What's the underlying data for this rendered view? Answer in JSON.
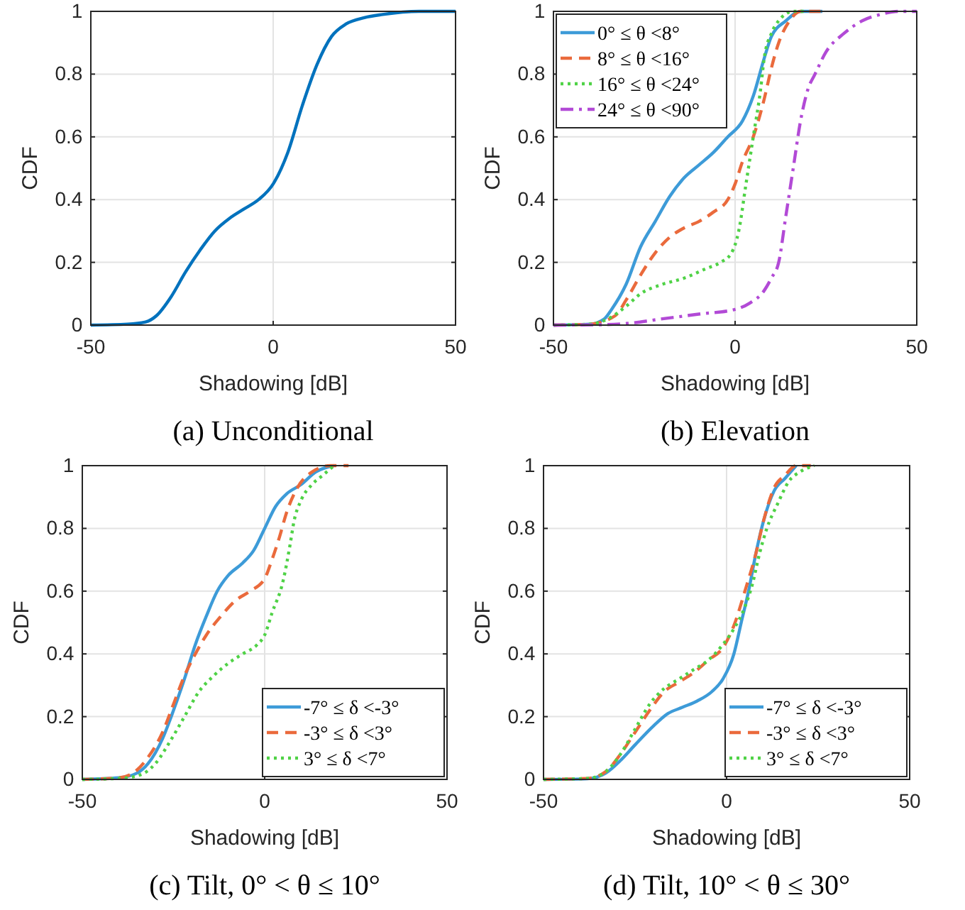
{
  "chart_data": [
    {
      "type": "line",
      "title": "(a) Unconditional",
      "xlabel": "Shadowing [dB]",
      "ylabel": "CDF",
      "xlim": [
        -50,
        50
      ],
      "xticks": [
        -50,
        0,
        50
      ],
      "ylim": [
        0,
        1
      ],
      "yticks": [
        0,
        0.2,
        0.4,
        0.6,
        0.8,
        1
      ],
      "grid": true,
      "legend": false,
      "series": [
        {
          "color": "#0072bd",
          "line_style": "solid",
          "x": [
            -50,
            -40,
            -35,
            -32,
            -28,
            -24,
            -20,
            -16,
            -12,
            -8,
            -4,
            0,
            4,
            8,
            12,
            16,
            20,
            25,
            30,
            40,
            50
          ],
          "values": [
            0,
            0.003,
            0.01,
            0.03,
            0.09,
            0.17,
            0.24,
            0.3,
            0.34,
            0.37,
            0.4,
            0.45,
            0.55,
            0.7,
            0.83,
            0.92,
            0.96,
            0.98,
            0.99,
            1,
            1
          ]
        }
      ]
    },
    {
      "type": "line",
      "title": "(b) Elevation",
      "xlabel": "Shadowing [dB]",
      "ylabel": "CDF",
      "xlim": [
        -50,
        50
      ],
      "xticks": [
        -50,
        0,
        50
      ],
      "ylim": [
        0,
        1
      ],
      "yticks": [
        0,
        0.2,
        0.4,
        0.6,
        0.8,
        1
      ],
      "grid": true,
      "legend": "top left",
      "series": [
        {
          "name": "0° ≤ θ <8°",
          "color": "#3d9bd8",
          "line_style": "solid",
          "x": [
            -50,
            -40,
            -36,
            -34,
            -30,
            -26,
            -22,
            -18,
            -14,
            -10,
            -6,
            -2,
            2,
            5,
            8,
            10,
            14,
            18,
            24
          ],
          "values": [
            0,
            0.003,
            0.02,
            0.05,
            0.13,
            0.25,
            0.33,
            0.41,
            0.47,
            0.51,
            0.55,
            0.6,
            0.65,
            0.73,
            0.85,
            0.92,
            0.97,
            1,
            1
          ]
        },
        {
          "name": "8° ≤ θ <16°",
          "color": "#ea6a3c",
          "line_style": "dashed",
          "x": [
            -50,
            -40,
            -33,
            -30,
            -26,
            -22,
            -18,
            -14,
            -10,
            -6,
            -2,
            0,
            2,
            5,
            8,
            10,
            12,
            15,
            18,
            24
          ],
          "values": [
            0,
            0.003,
            0.03,
            0.08,
            0.16,
            0.23,
            0.28,
            0.31,
            0.33,
            0.36,
            0.4,
            0.45,
            0.52,
            0.6,
            0.72,
            0.82,
            0.9,
            0.97,
            1,
            1
          ]
        },
        {
          "name": "16° ≤ θ <24°",
          "color": "#4fd246",
          "line_style": "dotted",
          "x": [
            -50,
            -40,
            -35,
            -30,
            -26,
            -20,
            -14,
            -8,
            -4,
            -1,
            1,
            3,
            5,
            7,
            8,
            10,
            12,
            16,
            20
          ],
          "values": [
            0,
            0.003,
            0.02,
            0.06,
            0.1,
            0.13,
            0.15,
            0.18,
            0.2,
            0.23,
            0.3,
            0.45,
            0.6,
            0.75,
            0.85,
            0.93,
            0.97,
            1,
            1
          ]
        },
        {
          "name": "24° ≤ θ <90°",
          "color": "#b24ad6",
          "line_style": "dashdot",
          "x": [
            -50,
            -38,
            -30,
            -20,
            -10,
            0,
            4,
            8,
            10,
            12,
            14,
            16,
            18,
            20,
            22,
            25,
            30,
            35,
            40,
            45,
            50
          ],
          "values": [
            0,
            0.001,
            0.005,
            0.02,
            0.035,
            0.05,
            0.07,
            0.11,
            0.15,
            0.2,
            0.35,
            0.5,
            0.65,
            0.75,
            0.8,
            0.87,
            0.93,
            0.97,
            0.99,
            1,
            1
          ]
        }
      ]
    },
    {
      "type": "line",
      "title": "(c) Tilt, 0° < θ ≤ 10°",
      "xlabel": "Shadowing [dB]",
      "ylabel": "CDF",
      "xlim": [
        -50,
        50
      ],
      "xticks": [
        -50,
        0,
        50
      ],
      "ylim": [
        0,
        1
      ],
      "yticks": [
        0,
        0.2,
        0.4,
        0.6,
        0.8,
        1
      ],
      "grid": true,
      "legend": "bottom right",
      "series": [
        {
          "name": "-7° ≤ δ <-3°",
          "color": "#3d9bd8",
          "line_style": "solid",
          "x": [
            -50,
            -40,
            -35,
            -32,
            -28,
            -25,
            -22,
            -19,
            -16,
            -13,
            -10,
            -6,
            -3,
            0,
            3,
            6,
            10,
            14,
            19
          ],
          "values": [
            0,
            0.005,
            0.02,
            0.05,
            0.13,
            0.22,
            0.32,
            0.43,
            0.52,
            0.6,
            0.65,
            0.69,
            0.73,
            0.8,
            0.87,
            0.91,
            0.94,
            0.98,
            1
          ]
        },
        {
          "name": "-3° ≤ δ <3°",
          "color": "#ea6a3c",
          "line_style": "dashed",
          "x": [
            -50,
            -40,
            -35,
            -32,
            -28,
            -25,
            -22,
            -19,
            -16,
            -12,
            -8,
            -4,
            0,
            2,
            4,
            6,
            9,
            13,
            18,
            23
          ],
          "values": [
            0,
            0.005,
            0.03,
            0.07,
            0.15,
            0.24,
            0.33,
            0.4,
            0.46,
            0.52,
            0.57,
            0.6,
            0.64,
            0.7,
            0.77,
            0.85,
            0.93,
            0.98,
            1,
            1
          ]
        },
        {
          "name": "3° ≤ δ <7°",
          "color": "#4fd246",
          "line_style": "dotted",
          "x": [
            -50,
            -40,
            -34,
            -30,
            -26,
            -22,
            -18,
            -14,
            -10,
            -6,
            -2,
            0,
            2,
            5,
            7,
            8,
            10,
            13,
            16,
            19
          ],
          "values": [
            0,
            0.003,
            0.015,
            0.05,
            0.12,
            0.2,
            0.28,
            0.33,
            0.37,
            0.4,
            0.43,
            0.46,
            0.53,
            0.63,
            0.75,
            0.82,
            0.89,
            0.94,
            0.97,
            1
          ]
        }
      ]
    },
    {
      "type": "line",
      "title": "(d) Tilt, 10° < θ ≤ 30°",
      "xlabel": "Shadowing [dB]",
      "ylabel": "CDF",
      "xlim": [
        -50,
        50
      ],
      "xticks": [
        -50,
        0,
        50
      ],
      "ylim": [
        0,
        1
      ],
      "yticks": [
        0,
        0.2,
        0.4,
        0.6,
        0.8,
        1
      ],
      "grid": true,
      "legend": "bottom right",
      "series": [
        {
          "name": "-7° ≤ δ <-3°",
          "color": "#3d9bd8",
          "line_style": "solid",
          "x": [
            -50,
            -38,
            -33,
            -29,
            -25,
            -20,
            -16,
            -12,
            -8,
            -4,
            -1,
            2,
            4,
            6,
            8,
            10,
            13,
            16,
            19
          ],
          "values": [
            0,
            0.002,
            0.02,
            0.06,
            0.11,
            0.17,
            0.21,
            0.23,
            0.25,
            0.28,
            0.32,
            0.4,
            0.5,
            0.6,
            0.72,
            0.82,
            0.92,
            0.96,
            1
          ]
        },
        {
          "name": "-3° ≤ δ <3°",
          "color": "#ea6a3c",
          "line_style": "dashed",
          "x": [
            -50,
            -38,
            -33,
            -29,
            -25,
            -21,
            -17,
            -13,
            -9,
            -5,
            -1,
            2,
            5,
            8,
            10,
            13,
            16,
            19,
            23
          ],
          "values": [
            0,
            0.003,
            0.025,
            0.08,
            0.15,
            0.22,
            0.28,
            0.31,
            0.34,
            0.38,
            0.42,
            0.49,
            0.6,
            0.72,
            0.82,
            0.93,
            0.97,
            1,
            1
          ]
        },
        {
          "name": "3° ≤ δ <7°",
          "color": "#4fd246",
          "line_style": "dotted",
          "x": [
            -50,
            -38,
            -33,
            -29,
            -25,
            -21,
            -17,
            -13,
            -9,
            -5,
            -1,
            2,
            5,
            7,
            9,
            11,
            14,
            17,
            20,
            24
          ],
          "values": [
            0,
            0.003,
            0.025,
            0.08,
            0.16,
            0.24,
            0.29,
            0.32,
            0.35,
            0.38,
            0.43,
            0.48,
            0.55,
            0.62,
            0.72,
            0.8,
            0.88,
            0.95,
            0.98,
            1
          ]
        }
      ]
    }
  ]
}
